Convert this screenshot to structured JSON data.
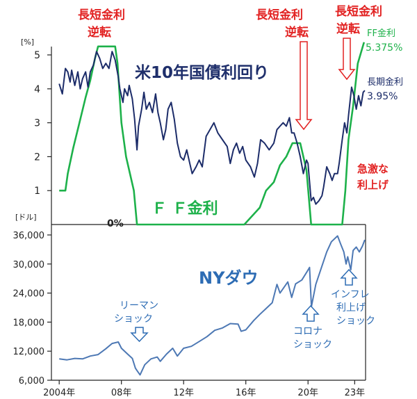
{
  "colors": {
    "ff": "#1db14a",
    "long": "#1c2c69",
    "dow": "#4d78b4",
    "red": "#e22222",
    "navy": "#1f2f6b",
    "blue": "#2d6cb4",
    "axis": "#222222"
  },
  "labels": {
    "inv1": [
      "長短金利",
      "逆転"
    ],
    "inv2": [
      "長短金利",
      "逆転"
    ],
    "inv3": [
      "長短金利",
      "逆転"
    ],
    "ff_legend": [
      "FF金利",
      "5.375%"
    ],
    "long_legend": [
      "長期金利",
      "3.95%"
    ],
    "hike": [
      "急激な",
      "利上げ"
    ],
    "title_top": "米10年国債利回り",
    "ff_title": "Ｆ Ｆ金利",
    "zero": "0%",
    "dow_title": "NYダウ",
    "lehman": [
      "リーマン",
      "ショック"
    ],
    "corona": [
      "コロナ",
      "ショック"
    ],
    "inflation": [
      "インフレ",
      "利上げ",
      "ショック"
    ]
  },
  "chart_data": [
    {
      "type": "line",
      "ylabel": "[%]",
      "ylim": [
        0,
        5.3
      ],
      "yticks": [
        "1",
        "2",
        "3",
        "4",
        "5"
      ],
      "series": [
        {
          "name": "FF金利",
          "points": [
            [
              2004.0,
              1.0
            ],
            [
              2004.4,
              1.0
            ],
            [
              2004.55,
              1.5
            ],
            [
              2004.9,
              2.25
            ],
            [
              2005.3,
              3.0
            ],
            [
              2005.7,
              3.75
            ],
            [
              2006.0,
              4.25
            ],
            [
              2006.3,
              4.9
            ],
            [
              2006.5,
              5.25
            ],
            [
              2007.6,
              5.25
            ],
            [
              2007.75,
              4.75
            ],
            [
              2008.0,
              3.0
            ],
            [
              2008.3,
              2.0
            ],
            [
              2008.8,
              1.0
            ],
            [
              2009.0,
              0.0
            ],
            [
              2015.9,
              0.0
            ],
            [
              2016.9,
              0.5
            ],
            [
              2017.3,
              1.0
            ],
            [
              2017.8,
              1.25
            ],
            [
              2018.2,
              1.75
            ],
            [
              2018.6,
              2.0
            ],
            [
              2019.0,
              2.4
            ],
            [
              2019.5,
              2.4
            ],
            [
              2019.9,
              1.6
            ],
            [
              2020.2,
              0.0
            ],
            [
              2022.2,
              0.0
            ],
            [
              2022.4,
              1.0
            ],
            [
              2022.6,
              2.5
            ],
            [
              2022.9,
              3.5
            ],
            [
              2023.2,
              4.75
            ],
            [
              2023.6,
              5.375
            ]
          ]
        },
        {
          "name": "長期金利",
          "points": [
            [
              2004.0,
              4.15
            ],
            [
              2004.2,
              3.85
            ],
            [
              2004.4,
              4.6
            ],
            [
              2004.55,
              4.5
            ],
            [
              2004.7,
              4.2
            ],
            [
              2004.8,
              4.55
            ],
            [
              2005.0,
              4.1
            ],
            [
              2005.2,
              4.5
            ],
            [
              2005.35,
              4.0
            ],
            [
              2005.5,
              4.3
            ],
            [
              2005.7,
              4.5
            ],
            [
              2005.85,
              4.05
            ],
            [
              2006.0,
              4.5
            ],
            [
              2006.2,
              4.7
            ],
            [
              2006.4,
              5.1
            ],
            [
              2006.6,
              4.9
            ],
            [
              2006.8,
              4.6
            ],
            [
              2007.0,
              4.75
            ],
            [
              2007.2,
              4.6
            ],
            [
              2007.4,
              5.1
            ],
            [
              2007.6,
              4.85
            ],
            [
              2007.8,
              4.35
            ],
            [
              2007.9,
              4.0
            ],
            [
              2008.1,
              3.6
            ],
            [
              2008.2,
              4.0
            ],
            [
              2008.4,
              3.8
            ],
            [
              2008.5,
              4.1
            ],
            [
              2008.7,
              3.7
            ],
            [
              2008.85,
              3.1
            ],
            [
              2009.0,
              2.2
            ],
            [
              2009.1,
              2.9
            ],
            [
              2009.3,
              3.4
            ],
            [
              2009.45,
              3.9
            ],
            [
              2009.6,
              3.4
            ],
            [
              2009.8,
              3.6
            ],
            [
              2010.0,
              3.3
            ],
            [
              2010.2,
              3.85
            ],
            [
              2010.35,
              3.3
            ],
            [
              2010.5,
              3.0
            ],
            [
              2010.7,
              2.5
            ],
            [
              2010.85,
              2.8
            ],
            [
              2011.0,
              3.4
            ],
            [
              2011.2,
              3.6
            ],
            [
              2011.4,
              3.1
            ],
            [
              2011.6,
              2.4
            ],
            [
              2011.8,
              2.0
            ],
            [
              2012.0,
              1.9
            ],
            [
              2012.2,
              2.2
            ],
            [
              2012.4,
              1.8
            ],
            [
              2012.55,
              1.5
            ],
            [
              2012.8,
              1.7
            ],
            [
              2013.0,
              1.9
            ],
            [
              2013.2,
              1.7
            ],
            [
              2013.45,
              2.6
            ],
            [
              2013.7,
              2.8
            ],
            [
              2013.95,
              3.0
            ],
            [
              2014.2,
              2.7
            ],
            [
              2014.5,
              2.5
            ],
            [
              2014.8,
              2.3
            ],
            [
              2015.0,
              1.8
            ],
            [
              2015.2,
              2.2
            ],
            [
              2015.4,
              2.4
            ],
            [
              2015.6,
              2.1
            ],
            [
              2015.8,
              2.3
            ],
            [
              2016.0,
              1.9
            ],
            [
              2016.3,
              1.7
            ],
            [
              2016.55,
              1.4
            ],
            [
              2016.75,
              1.8
            ],
            [
              2016.95,
              2.5
            ],
            [
              2017.2,
              2.4
            ],
            [
              2017.5,
              2.2
            ],
            [
              2017.8,
              2.4
            ],
            [
              2018.0,
              2.8
            ],
            [
              2018.2,
              2.9
            ],
            [
              2018.4,
              3.0
            ],
            [
              2018.6,
              2.9
            ],
            [
              2018.8,
              3.15
            ],
            [
              2018.95,
              2.7
            ],
            [
              2019.1,
              2.7
            ],
            [
              2019.3,
              2.4
            ],
            [
              2019.5,
              2.0
            ],
            [
              2019.7,
              1.5
            ],
            [
              2019.9,
              1.9
            ],
            [
              2020.0,
              1.8
            ],
            [
              2020.2,
              0.7
            ],
            [
              2020.35,
              0.8
            ],
            [
              2020.5,
              0.6
            ],
            [
              2020.7,
              0.7
            ],
            [
              2020.9,
              0.85
            ],
            [
              2021.0,
              1.1
            ],
            [
              2021.2,
              1.7
            ],
            [
              2021.4,
              1.5
            ],
            [
              2021.55,
              1.3
            ],
            [
              2021.7,
              1.5
            ],
            [
              2021.9,
              1.5
            ],
            [
              2022.0,
              1.8
            ],
            [
              2022.2,
              2.5
            ],
            [
              2022.35,
              3.0
            ],
            [
              2022.5,
              2.7
            ],
            [
              2022.6,
              3.2
            ],
            [
              2022.8,
              4.05
            ],
            [
              2022.95,
              3.8
            ],
            [
              2023.1,
              3.4
            ],
            [
              2023.25,
              3.8
            ],
            [
              2023.4,
              3.5
            ],
            [
              2023.55,
              3.9
            ],
            [
              2023.65,
              3.95
            ]
          ]
        }
      ]
    },
    {
      "type": "line",
      "ylabel": "[ドル]",
      "ylim": [
        6000,
        36000
      ],
      "yticks": [
        "6,000",
        "12,000",
        "18,000",
        "24,000",
        "30,000",
        "36,000"
      ],
      "xticks": [
        "2004年",
        "08年",
        "12年",
        "16年",
        "20年",
        "23年"
      ],
      "series": [
        {
          "name": "NYダウ",
          "points": [
            [
              2004.0,
              10400
            ],
            [
              2004.5,
              10200
            ],
            [
              2005.0,
              10500
            ],
            [
              2005.5,
              10400
            ],
            [
              2006.0,
              11000
            ],
            [
              2006.5,
              11300
            ],
            [
              2007.0,
              12500
            ],
            [
              2007.4,
              13600
            ],
            [
              2007.8,
              13900
            ],
            [
              2008.0,
              12600
            ],
            [
              2008.4,
              11400
            ],
            [
              2008.7,
              10500
            ],
            [
              2008.9,
              8500
            ],
            [
              2009.0,
              8000
            ],
            [
              2009.2,
              7100
            ],
            [
              2009.5,
              9200
            ],
            [
              2009.9,
              10400
            ],
            [
              2010.3,
              10800
            ],
            [
              2010.5,
              9900
            ],
            [
              2010.9,
              11400
            ],
            [
              2011.3,
              12600
            ],
            [
              2011.6,
              11000
            ],
            [
              2012.0,
              12600
            ],
            [
              2012.5,
              13000
            ],
            [
              2013.0,
              14000
            ],
            [
              2013.5,
              15000
            ],
            [
              2014.0,
              16300
            ],
            [
              2014.5,
              16800
            ],
            [
              2015.0,
              17700
            ],
            [
              2015.5,
              17600
            ],
            [
              2015.7,
              16100
            ],
            [
              2016.0,
              16400
            ],
            [
              2016.5,
              18300
            ],
            [
              2016.9,
              19600
            ],
            [
              2017.3,
              20800
            ],
            [
              2017.7,
              22000
            ],
            [
              2018.0,
              25800
            ],
            [
              2018.2,
              24000
            ],
            [
              2018.7,
              26300
            ],
            [
              2018.95,
              23100
            ],
            [
              2019.2,
              25900
            ],
            [
              2019.6,
              26700
            ],
            [
              2019.95,
              28500
            ],
            [
              2020.1,
              29300
            ],
            [
              2020.22,
              21200
            ],
            [
              2020.5,
              25800
            ],
            [
              2020.9,
              29600
            ],
            [
              2021.2,
              32500
            ],
            [
              2021.5,
              34600
            ],
            [
              2021.9,
              35800
            ],
            [
              2022.1,
              34100
            ],
            [
              2022.3,
              32500
            ],
            [
              2022.45,
              30000
            ],
            [
              2022.55,
              31500
            ],
            [
              2022.75,
              28800
            ],
            [
              2022.9,
              32800
            ],
            [
              2023.1,
              33500
            ],
            [
              2023.3,
              32500
            ],
            [
              2023.5,
              33700
            ],
            [
              2023.65,
              35000
            ]
          ]
        }
      ]
    }
  ]
}
